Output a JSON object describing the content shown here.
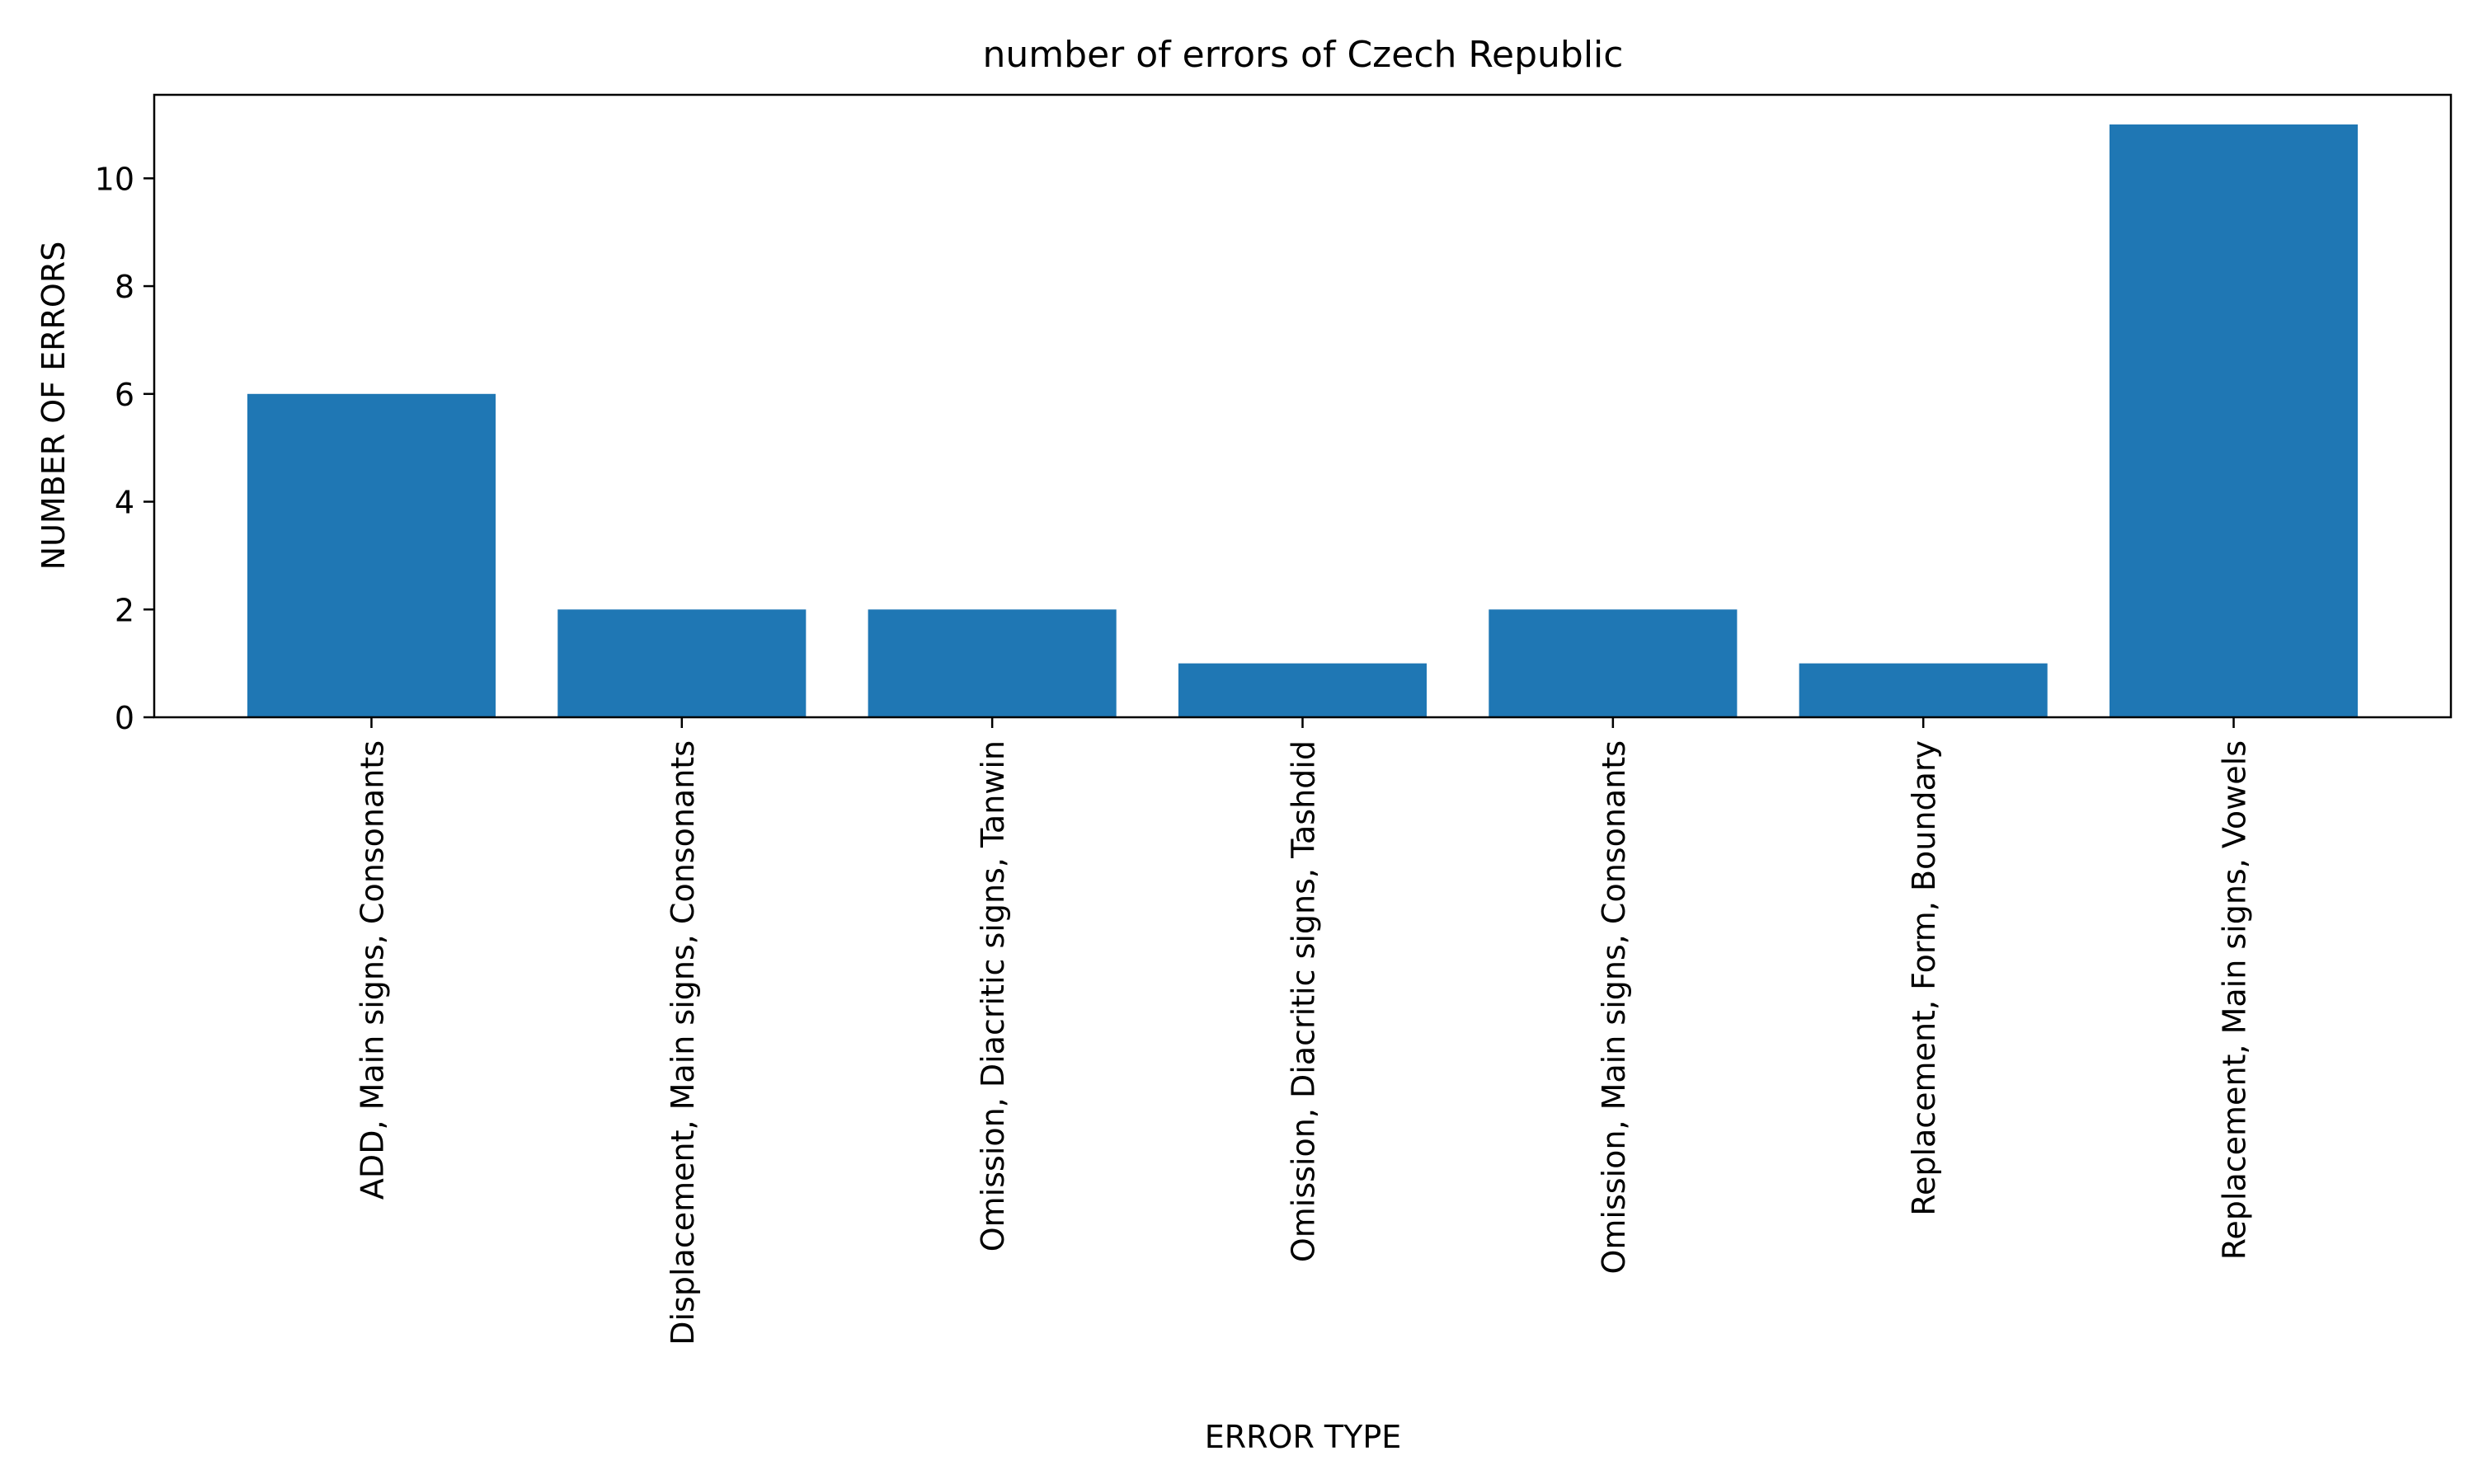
{
  "chart_data": {
    "type": "bar",
    "title": "number of errors of Czech Republic",
    "xlabel": "ERROR TYPE",
    "ylabel": "NUMBER OF ERRORS",
    "categories": [
      "ADD, Main signs, Consonants",
      "Displacement, Main signs, Consonants",
      "Omission, Diacritic signs, Tanwin",
      "Omission, Diacritic signs, Tashdid",
      "Omission, Main signs, Consonants",
      "Replacement, Form, Boundary",
      "Replacement, Main signs, Vowels"
    ],
    "values": [
      6,
      2,
      2,
      1,
      2,
      1,
      11
    ],
    "ylim": [
      0,
      11.55
    ],
    "yticks": [
      0,
      2,
      4,
      6,
      8,
      10
    ],
    "ytick_labels": [
      "0",
      "2",
      "4",
      "6",
      "8",
      "10"
    ],
    "bar_color": "#1f77b4",
    "grid": false,
    "legend": "none"
  }
}
